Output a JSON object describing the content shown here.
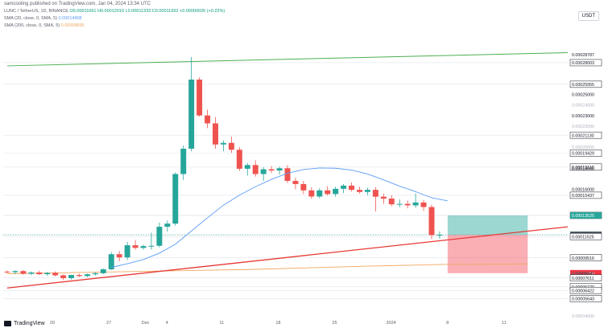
{
  "credit": "samcooling published on TradingView.com, Jan 04, 2024 13:34 UTC",
  "header": {
    "symbol_line": "LUNC / TetherUS, 1D, BINANCE",
    "ohlc": "O0.00011661 H0.00012010 L0.00011333 C0.00011692",
    "change": "+0.00000026 (+0.22%)",
    "sma20": "SMA (20, close, 0, SMA, 5)",
    "sma20_value": "0.00014908",
    "sma200": "SMA (200, close, 0, SMA, 5)",
    "sma200_value": "0.00008895"
  },
  "currency_button": "USDT",
  "attribution": "TradingView",
  "colors": {
    "up": "#26a69a",
    "down": "#ef5350",
    "sma20": "#5b9cf6",
    "sma200": "#f0a860",
    "green_line": "#4caf50",
    "red_line": "#e53935",
    "target_zone": "#26a69a",
    "stop_zone": "#f23645"
  },
  "chart_data": {
    "type": "candlestick",
    "x_tick_labels": [
      "20",
      "27",
      "Dec",
      "4",
      "11",
      "18",
      "25",
      "2024",
      "8",
      "11"
    ],
    "price_labels": [
      {
        "value": 0.00028787,
        "text": "0.00028787",
        "style": "plain"
      },
      {
        "value": 0.00028003,
        "text": "0.00028003",
        "style": "box"
      },
      {
        "value": 0.00025955,
        "text": "0.00025955",
        "style": "box"
      },
      {
        "value": 0.00025,
        "text": "0.00025000",
        "style": "plain"
      },
      {
        "value": 0.00024,
        "text": "0.00024000",
        "style": "faint"
      },
      {
        "value": 0.00023,
        "text": "0.00023000",
        "style": "plain"
      },
      {
        "value": 0.00022,
        "text": "0.00022000",
        "style": "faint"
      },
      {
        "value": 0.0002113,
        "text": "0.00021130",
        "style": "box"
      },
      {
        "value": 0.0002,
        "text": "0.00020000",
        "style": "faint"
      },
      {
        "value": 0.00019429,
        "text": "0.00019429",
        "style": "box"
      },
      {
        "value": 0.0001811,
        "text": "0.00018110",
        "style": "box"
      },
      {
        "value": 0.00018,
        "text": "0.00018000",
        "style": "plain"
      },
      {
        "value": 0.00016,
        "text": "0.00016000",
        "style": "plain"
      },
      {
        "value": 0.00015437,
        "text": "0.00015437",
        "style": "box"
      },
      {
        "value": 0.00013528,
        "text": "0.00013528",
        "style": "box"
      },
      {
        "value": 0.00013525,
        "text": "0.00013525",
        "style": "green"
      },
      {
        "value": 0.00011692,
        "text": "0.00011692",
        "style": "green"
      },
      {
        "value": 0.00011676,
        "text": "0.00011676",
        "style": "dark"
      },
      {
        "value": 0.00011525,
        "text": "0.00011525",
        "style": "box"
      },
      {
        "value": 9.516e-05,
        "text": "0.00009516",
        "style": "box"
      },
      {
        "value": 8.05e-05,
        "text": "0.00008050",
        "style": "red"
      },
      {
        "value": 8.041e-05,
        "text": "0.00008041",
        "style": "plain"
      },
      {
        "value": 7.611e-05,
        "text": "0.00007611",
        "style": "box"
      },
      {
        "value": 6.77e-05,
        "text": "0.00006770",
        "style": "box"
      },
      {
        "value": 6.422e-05,
        "text": "0.00006422",
        "style": "box"
      },
      {
        "value": 5.643e-05,
        "text": "0.00005643",
        "style": "box"
      },
      {
        "value": 4e-05,
        "text": "0.00004000",
        "style": "faint"
      }
    ],
    "candles": [
      {
        "x": 0,
        "o": 8.2e-05,
        "h": 8.3e-05,
        "l": 8.05e-05,
        "c": 8.15e-05
      },
      {
        "x": 1,
        "o": 8.15e-05,
        "h": 8.32e-05,
        "l": 7.95e-05,
        "c": 8.25e-05
      },
      {
        "x": 2,
        "o": 8.25e-05,
        "h": 8.35e-05,
        "l": 7.9e-05,
        "c": 8e-05
      },
      {
        "x": 3,
        "o": 8e-05,
        "h": 8.22e-05,
        "l": 7.85e-05,
        "c": 8.12e-05
      },
      {
        "x": 4,
        "o": 8.12e-05,
        "h": 8.28e-05,
        "l": 7.9e-05,
        "c": 7.96e-05
      },
      {
        "x": 5,
        "o": 7.96e-05,
        "h": 8.18e-05,
        "l": 7.8e-05,
        "c": 8.08e-05
      },
      {
        "x": 6,
        "o": 8.08e-05,
        "h": 8.22e-05,
        "l": 7.75e-05,
        "c": 7.85e-05
      },
      {
        "x": 7,
        "o": 7.85e-05,
        "h": 7.92e-05,
        "l": 7.4e-05,
        "c": 7.58e-05
      },
      {
        "x": 8,
        "o": 7.58e-05,
        "h": 7.9e-05,
        "l": 7.45e-05,
        "c": 7.88e-05
      },
      {
        "x": 9,
        "o": 7.88e-05,
        "h": 8e-05,
        "l": 7.7e-05,
        "c": 7.78e-05
      },
      {
        "x": 10,
        "o": 7.78e-05,
        "h": 8.02e-05,
        "l": 7.68e-05,
        "c": 7.95e-05
      },
      {
        "x": 11,
        "o": 7.95e-05,
        "h": 8.15e-05,
        "l": 7.82e-05,
        "c": 8.05e-05
      },
      {
        "x": 12,
        "o": 8.05e-05,
        "h": 8.5e-05,
        "l": 7.95e-05,
        "c": 8.42e-05
      },
      {
        "x": 13,
        "o": 8.42e-05,
        "h": 0.0001005,
        "l": 8.35e-05,
        "c": 9.85e-05
      },
      {
        "x": 14,
        "o": 9.85e-05,
        "h": 0.0001015,
        "l": 9.18e-05,
        "c": 9.55e-05
      },
      {
        "x": 15,
        "o": 9.55e-05,
        "h": 0.0001102,
        "l": 9.3e-05,
        "c": 0.000107
      },
      {
        "x": 16,
        "o": 0.000107,
        "h": 0.000112,
        "l": 0.000103,
        "c": 0.0001045
      },
      {
        "x": 17,
        "o": 0.0001045,
        "h": 0.0001075,
        "l": 0.000103,
        "c": 0.0001062
      },
      {
        "x": 18,
        "o": 0.0001062,
        "h": 0.000119,
        "l": 0.000103,
        "c": 0.0001065
      },
      {
        "x": 19,
        "o": 0.0001065,
        "h": 0.0001285,
        "l": 0.000105,
        "c": 0.0001245
      },
      {
        "x": 20,
        "o": 0.0001245,
        "h": 0.0001305,
        "l": 0.00012,
        "c": 0.0001275
      },
      {
        "x": 21,
        "o": 0.0001275,
        "h": 0.000176,
        "l": 0.0001255,
        "c": 0.0001745
      },
      {
        "x": 22,
        "o": 0.0001745,
        "h": 0.0002015,
        "l": 0.000169,
        "c": 0.0001985
      },
      {
        "x": 23,
        "o": 0.0001985,
        "h": 0.0002855,
        "l": 0.000196,
        "c": 0.000264
      },
      {
        "x": 24,
        "o": 0.000264,
        "h": 0.000266,
        "l": 0.000229,
        "c": 0.00023
      },
      {
        "x": 25,
        "o": 0.00023,
        "h": 0.0002355,
        "l": 0.000218,
        "c": 0.0002225
      },
      {
        "x": 26,
        "o": 0.0002225,
        "h": 0.0002285,
        "l": 0.0001985,
        "c": 0.0002025
      },
      {
        "x": 27,
        "o": 0.0002025,
        "h": 0.0002065,
        "l": 0.000196,
        "c": 0.000204
      },
      {
        "x": 28,
        "o": 0.000204,
        "h": 0.00021,
        "l": 0.0001945,
        "c": 0.0001975
      },
      {
        "x": 29,
        "o": 0.0001975,
        "h": 0.0002,
        "l": 0.0001775,
        "c": 0.0001795
      },
      {
        "x": 30,
        "o": 0.0001795,
        "h": 0.000185,
        "l": 0.000173,
        "c": 0.000183
      },
      {
        "x": 31,
        "o": 0.000183,
        "h": 0.0001875,
        "l": 0.000172,
        "c": 0.0001745
      },
      {
        "x": 32,
        "o": 0.0001745,
        "h": 0.000181,
        "l": 0.000168,
        "c": 0.000179
      },
      {
        "x": 33,
        "o": 0.000179,
        "h": 0.000182,
        "l": 0.0001755,
        "c": 0.0001778
      },
      {
        "x": 34,
        "o": 0.0001778,
        "h": 0.0001815,
        "l": 0.000174,
        "c": 0.00018
      },
      {
        "x": 35,
        "o": 0.00018,
        "h": 0.000183,
        "l": 0.000166,
        "c": 0.000168
      },
      {
        "x": 36,
        "o": 0.000168,
        "h": 0.000171,
        "l": 0.00016,
        "c": 0.000165
      },
      {
        "x": 37,
        "o": 0.000165,
        "h": 0.000168,
        "l": 0.0001555,
        "c": 0.000159
      },
      {
        "x": 38,
        "o": 0.000159,
        "h": 0.000162,
        "l": 0.000151,
        "c": 0.0001532
      },
      {
        "x": 39,
        "o": 0.0001532,
        "h": 0.000161,
        "l": 0.0001515,
        "c": 0.000159
      },
      {
        "x": 40,
        "o": 0.000159,
        "h": 0.000163,
        "l": 0.000154,
        "c": 0.0001555
      },
      {
        "x": 41,
        "o": 0.0001555,
        "h": 0.0001625,
        "l": 0.000153,
        "c": 0.0001605
      },
      {
        "x": 42,
        "o": 0.0001605,
        "h": 0.000165,
        "l": 0.0001565,
        "c": 0.0001635
      },
      {
        "x": 43,
        "o": 0.0001635,
        "h": 0.0001665,
        "l": 0.000158,
        "c": 0.0001595
      },
      {
        "x": 44,
        "o": 0.0001595,
        "h": 0.0001625,
        "l": 0.000156,
        "c": 0.0001575
      },
      {
        "x": 45,
        "o": 0.0001575,
        "h": 0.0001615,
        "l": 0.0001545,
        "c": 0.0001595
      },
      {
        "x": 46,
        "o": 0.0001595,
        "h": 0.000162,
        "l": 0.000139,
        "c": 0.000153
      },
      {
        "x": 47,
        "o": 0.000153,
        "h": 0.000156,
        "l": 0.000146,
        "c": 0.0001512
      },
      {
        "x": 48,
        "o": 0.0001512,
        "h": 0.0001545,
        "l": 0.000144,
        "c": 0.0001458
      },
      {
        "x": 49,
        "o": 0.0001458,
        "h": 0.0001505,
        "l": 0.000143,
        "c": 0.0001462
      },
      {
        "x": 50,
        "o": 0.0001462,
        "h": 0.0001495,
        "l": 0.000142,
        "c": 0.0001448
      },
      {
        "x": 51,
        "o": 0.0001448,
        "h": 0.000156,
        "l": 0.0001425,
        "c": 0.0001475
      },
      {
        "x": 52,
        "o": 0.0001475,
        "h": 0.00015,
        "l": 0.0001395,
        "c": 0.0001432
      },
      {
        "x": 53,
        "o": 0.0001432,
        "h": 0.0001455,
        "l": 0.000113,
        "c": 0.0001166
      },
      {
        "x": 54,
        "o": 0.0001166,
        "h": 0.0001201,
        "l": 0.0001133,
        "c": 0.0001169
      }
    ],
    "sma20": [
      [
        13,
        8.6e-05
      ],
      [
        15,
        8.95e-05
      ],
      [
        17,
        9.35e-05
      ],
      [
        19,
        9.95e-05
      ],
      [
        21,
        0.000108
      ],
      [
        23,
        0.0001205
      ],
      [
        25,
        0.000133
      ],
      [
        27,
        0.000145
      ],
      [
        29,
        0.0001545
      ],
      [
        31,
        0.0001625
      ],
      [
        33,
        0.0001695
      ],
      [
        35,
        0.0001752
      ],
      [
        37,
        0.0001788
      ],
      [
        39,
        0.0001802
      ],
      [
        41,
        0.00018
      ],
      [
        43,
        0.0001782
      ],
      [
        45,
        0.0001745
      ],
      [
        47,
        0.000169
      ],
      [
        49,
        0.000163
      ],
      [
        51,
        0.0001578
      ],
      [
        53,
        0.000152
      ],
      [
        55,
        0.0001491
      ]
    ],
    "sma200": [
      [
        0,
        8e-05
      ],
      [
        30,
        8.4e-05
      ],
      [
        45,
        8.72e-05
      ],
      [
        55,
        8.89e-05
      ],
      [
        65,
        8.93e-05
      ]
    ],
    "green_trendline": [
      [
        0,
        0.000277
      ],
      [
        70,
        0.0002895
      ]
    ],
    "red_trendline": [
      [
        0,
        6.65e-05
      ],
      [
        70,
        0.0001245
      ]
    ],
    "position": {
      "x_start": 55,
      "x_end": 65,
      "entry": 0.00011692,
      "target": 0.00013525,
      "stop": 8.05e-05
    },
    "ylim": [
      4e-05,
      0.000312
    ],
    "xlim": [
      -0.5,
      70
    ]
  }
}
